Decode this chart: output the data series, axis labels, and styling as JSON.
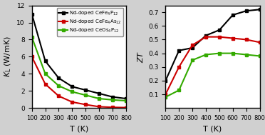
{
  "T": [
    100,
    200,
    300,
    400,
    500,
    600,
    700,
    800
  ],
  "kL_black": [
    11.0,
    5.5,
    3.5,
    2.5,
    2.1,
    1.7,
    1.3,
    1.1
  ],
  "kL_red": [
    6.0,
    2.8,
    1.4,
    0.7,
    0.4,
    0.15,
    0.08,
    0.05
  ],
  "kL_green": [
    8.3,
    4.0,
    2.6,
    1.9,
    1.5,
    1.1,
    0.95,
    0.85
  ],
  "ZT_black": [
    0.2,
    0.42,
    0.44,
    0.53,
    0.57,
    0.68,
    0.71,
    0.72
  ],
  "ZT_red": [
    0.1,
    0.3,
    0.46,
    0.52,
    0.52,
    0.51,
    0.5,
    0.48
  ],
  "ZT_green": [
    0.08,
    0.13,
    0.35,
    0.39,
    0.4,
    0.4,
    0.39,
    0.38
  ],
  "kL_ylim": [
    0,
    12
  ],
  "ZT_ylim": [
    0.0,
    0.75
  ],
  "kL_yticks": [
    0,
    2,
    4,
    6,
    8,
    10,
    12
  ],
  "ZT_yticks": [
    0.1,
    0.2,
    0.3,
    0.4,
    0.5,
    0.6,
    0.7
  ],
  "xticks": [
    100,
    200,
    300,
    400,
    500,
    600,
    700,
    800
  ],
  "xlabel": "T (K)",
  "kL_ylabel": "$K_{\\mathrm{L}}$ (W/mK)",
  "ZT_ylabel": "$ZT$",
  "label_black": "Nd-doped CeFe$_4$P$_{12}$",
  "label_red": "Nd-doped CeFe$_4$As$_{12}$",
  "label_green": "Nd-doped CeOs$_4$P$_{12}$",
  "color_black": "#000000",
  "color_red": "#cc0000",
  "color_green": "#33aa00",
  "marker": "s",
  "markersize": 3.5,
  "linewidth": 1.5,
  "plot_bg": "#ffffff",
  "fig_bg": "#d0d0d0",
  "legend_fontsize": 5.0,
  "tick_fontsize": 6.5,
  "label_fontsize": 8
}
